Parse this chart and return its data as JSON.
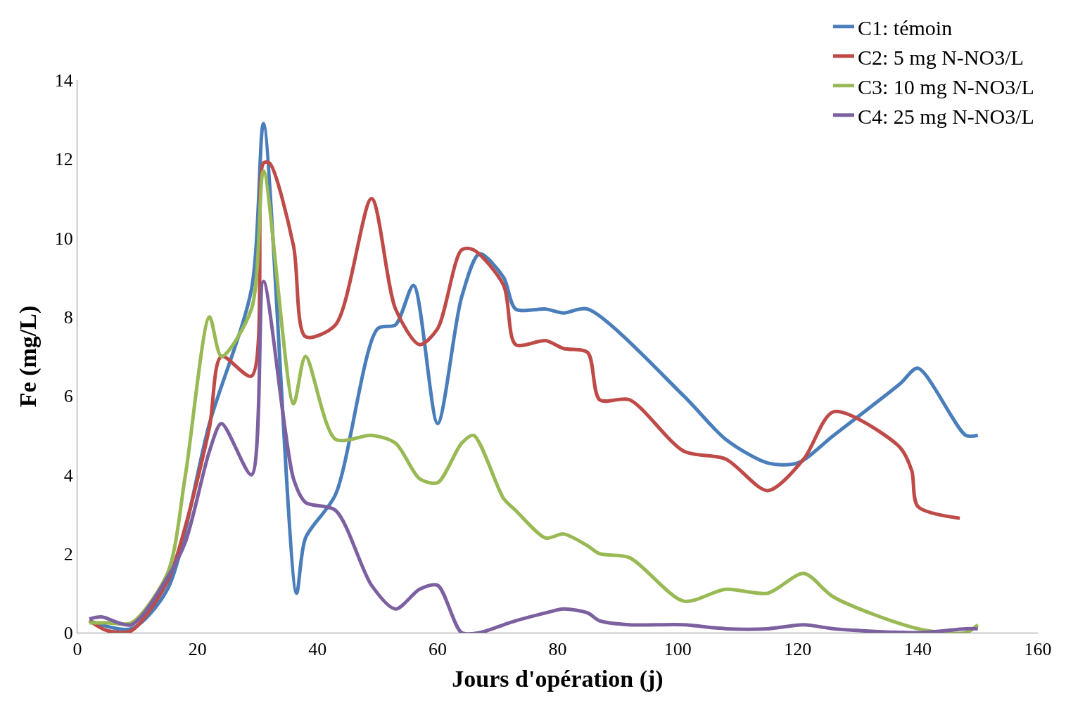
{
  "chart_data": {
    "type": "line",
    "xlabel": "Jours d'opération (j)",
    "ylabel": "Fe (mg/L)",
    "xlim": [
      0,
      160
    ],
    "xticks": [
      0,
      20,
      40,
      60,
      80,
      100,
      120,
      140,
      160
    ],
    "ylim": [
      0,
      14
    ],
    "yticks": [
      0,
      2,
      4,
      6,
      8,
      10,
      12,
      14
    ],
    "legend": "top right",
    "series": [
      {
        "name": "C1: témoin",
        "color": "#4a7ebb",
        "x": [
          2,
          9,
          15,
          22,
          29,
          31,
          36.5,
          38,
          43,
          50,
          53,
          56,
          60,
          64,
          67,
          71,
          73,
          78,
          81,
          85,
          101,
          108,
          115,
          120,
          126,
          137,
          140,
          148,
          150
        ],
        "values": [
          0.3,
          0.1,
          1.1,
          5.3,
          8.7,
          12.9,
          1.0,
          2.4,
          3.5,
          7.7,
          7.8,
          8.8,
          5.3,
          8.5,
          9.6,
          9.0,
          8.2,
          8.2,
          8.1,
          8.2,
          6.0,
          4.9,
          4.3,
          4.3,
          5.0,
          6.3,
          6.7,
          5.0,
          5.0
        ]
      },
      {
        "name": "C2: 5 mg N-NO3/L",
        "color": "#be4b48",
        "x": [
          2,
          5,
          9,
          15,
          18,
          22,
          24,
          29,
          31,
          32,
          36,
          38,
          43,
          49,
          53,
          57,
          60,
          64,
          66,
          71,
          73,
          78,
          81,
          85,
          87,
          92,
          101,
          108,
          115,
          121,
          126,
          137,
          139,
          140,
          147
        ],
        "values": [
          0.3,
          0.05,
          0.05,
          1.3,
          2.7,
          5.2,
          7.0,
          6.5,
          11.9,
          11.9,
          9.8,
          7.5,
          7.8,
          11.0,
          8.2,
          7.3,
          7.7,
          9.7,
          9.7,
          8.8,
          7.3,
          7.4,
          7.2,
          7.1,
          5.9,
          5.9,
          4.6,
          4.4,
          3.6,
          4.4,
          5.6,
          4.7,
          4.1,
          3.2,
          2.9
        ]
      },
      {
        "name": "C3: 10 mg N-NO3/L",
        "color": "#98b954",
        "x": [
          2,
          5,
          9,
          15,
          18,
          22,
          24,
          29,
          31,
          36,
          38,
          43,
          49,
          53,
          57,
          60,
          64,
          66,
          71,
          73,
          78,
          81,
          85,
          87,
          92,
          101,
          108,
          115,
          121,
          126,
          140,
          148,
          150
        ],
        "values": [
          0.25,
          0.25,
          0.25,
          1.5,
          4.0,
          8.0,
          7.0,
          8.2,
          11.7,
          5.8,
          7.0,
          4.9,
          5.0,
          4.8,
          3.9,
          3.8,
          4.8,
          5.0,
          3.4,
          3.1,
          2.4,
          2.5,
          2.2,
          2.0,
          1.9,
          0.8,
          1.1,
          1.0,
          1.5,
          0.9,
          0.1,
          0.0,
          0.2
        ]
      },
      {
        "name": "C4: 25 mg N-NO3/L",
        "color": "#7d60a0",
        "x": [
          2,
          4,
          9,
          15,
          18,
          22,
          24,
          29,
          31,
          36,
          38,
          43,
          49,
          53,
          57,
          60,
          64,
          67,
          71,
          73,
          78,
          81,
          85,
          87,
          92,
          101,
          108,
          115,
          121,
          126,
          140,
          148,
          150
        ],
        "values": [
          0.35,
          0.4,
          0.2,
          1.4,
          2.3,
          4.6,
          5.3,
          4.0,
          8.9,
          3.9,
          3.3,
          3.1,
          1.2,
          0.6,
          1.1,
          1.2,
          0.0,
          0.0,
          0.2,
          0.3,
          0.5,
          0.6,
          0.5,
          0.3,
          0.2,
          0.2,
          0.1,
          0.1,
          0.2,
          0.1,
          0.0,
          0.1,
          0.1
        ]
      }
    ]
  }
}
